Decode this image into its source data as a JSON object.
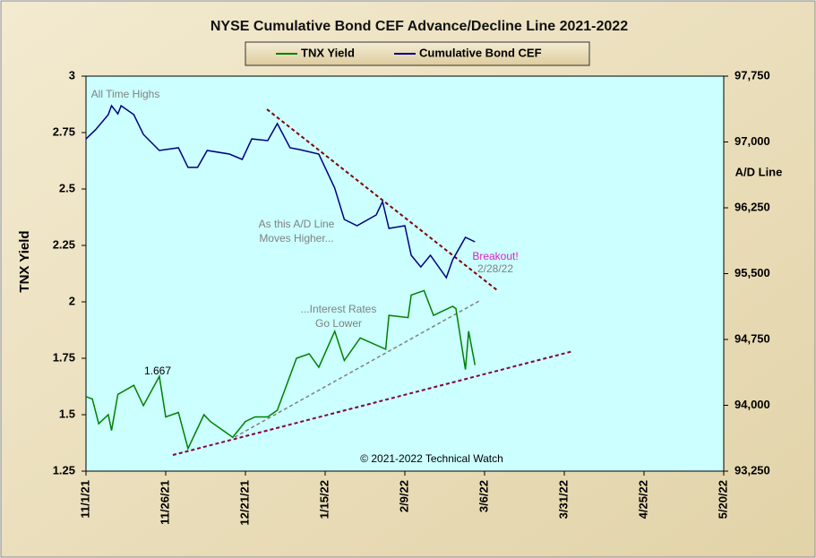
{
  "chart_data": {
    "type": "line",
    "title": "NYSE Cumulative  Bond CEF Advance/Decline  Line 2021-2022",
    "ylabel": "TNX Yield",
    "y2label": "A/D Line",
    "xlim": [
      "2021-11-01",
      "2022-05-20"
    ],
    "xticks": [
      {
        "value": "2021-11-01",
        "label": "11/1/21"
      },
      {
        "value": "2021-11-26",
        "label": "11/26/21"
      },
      {
        "value": "2021-12-21",
        "label": "12/21/21"
      },
      {
        "value": "2022-01-15",
        "label": "1/15/22"
      },
      {
        "value": "2022-02-09",
        "label": "2/9/22"
      },
      {
        "value": "2022-03-06",
        "label": "3/6/22"
      },
      {
        "value": "2022-03-31",
        "label": "3/31/22"
      },
      {
        "value": "2022-04-25",
        "label": "4/25/22"
      },
      {
        "value": "2022-05-20",
        "label": "5/20/22"
      }
    ],
    "ylim": [
      1.25,
      3
    ],
    "yticks": [
      1.25,
      1.5,
      1.75,
      2,
      2.25,
      2.5,
      2.75,
      3
    ],
    "y2lim": [
      93250,
      97750
    ],
    "y2ticks": [
      {
        "value": 93250,
        "label": "93,250"
      },
      {
        "value": 94000,
        "label": "94,000"
      },
      {
        "value": 94750,
        "label": "94,750"
      },
      {
        "value": 95500,
        "label": "95,500"
      },
      {
        "value": 96250,
        "label": "96,250"
      },
      {
        "value": 97000,
        "label": "97,000"
      },
      {
        "value": 97750,
        "label": "97,750"
      }
    ],
    "grid": false,
    "legend": "top",
    "series": [
      {
        "name": "TNX Yield",
        "color": "#008000",
        "axis": "y",
        "x": [
          "2021-11-01",
          "2021-11-03",
          "2021-11-05",
          "2021-11-08",
          "2021-11-09",
          "2021-11-11",
          "2021-11-16",
          "2021-11-19",
          "2021-11-24",
          "2021-11-26",
          "2021-11-30",
          "2021-12-03",
          "2021-12-08",
          "2021-12-10",
          "2021-12-17",
          "2021-12-21",
          "2021-12-24",
          "2021-12-28",
          "2021-12-31",
          "2022-01-06",
          "2022-01-10",
          "2022-01-13",
          "2022-01-18",
          "2022-01-21",
          "2022-01-26",
          "2022-02-03",
          "2022-02-04",
          "2022-02-10",
          "2022-02-11",
          "2022-02-15",
          "2022-02-18",
          "2022-02-24",
          "2022-02-25",
          "2022-02-28",
          "2022-03-01",
          "2022-03-03"
        ],
        "values": [
          1.58,
          1.57,
          1.46,
          1.5,
          1.43,
          1.59,
          1.63,
          1.54,
          1.67,
          1.49,
          1.51,
          1.35,
          1.5,
          1.47,
          1.4,
          1.47,
          1.49,
          1.49,
          1.52,
          1.75,
          1.77,
          1.71,
          1.87,
          1.74,
          1.84,
          1.79,
          1.94,
          1.93,
          2.03,
          2.05,
          1.94,
          1.98,
          1.97,
          1.7,
          1.87,
          1.72
        ]
      },
      {
        "name": "Cumulative Bond CEF",
        "color": "#000080",
        "axis": "y2",
        "x": [
          "2021-11-01",
          "2021-11-04",
          "2021-11-08",
          "2021-11-09",
          "2021-11-11",
          "2021-11-12",
          "2021-11-16",
          "2021-11-19",
          "2021-11-24",
          "2021-11-30",
          "2021-12-03",
          "2021-12-06",
          "2021-12-09",
          "2021-12-16",
          "2021-12-20",
          "2021-12-23",
          "2021-12-28",
          "2021-12-31",
          "2022-01-04",
          "2022-01-07",
          "2022-01-13",
          "2022-01-18",
          "2022-01-21",
          "2022-01-25",
          "2022-01-31",
          "2022-02-02",
          "2022-02-04",
          "2022-02-09",
          "2022-02-11",
          "2022-02-14",
          "2022-02-17",
          "2022-02-22",
          "2022-02-24",
          "2022-02-28",
          "2022-03-03"
        ],
        "values": [
          97035,
          97140,
          97311,
          97413,
          97320,
          97413,
          97311,
          97086,
          96903,
          96934,
          96710,
          96710,
          96903,
          96862,
          96801,
          97035,
          97015,
          97209,
          96934,
          96913,
          96862,
          96474,
          96117,
          96046,
          96168,
          96321,
          96015,
          96046,
          95709,
          95576,
          95709,
          95454,
          95658,
          95913,
          95862
        ]
      }
    ],
    "annotations": [
      {
        "lines": [
          "All Time Highs"
        ],
        "color": "#808080"
      },
      {
        "lines": [
          "As this A/D Line",
          "Moves Higher..."
        ],
        "color": "#808080"
      },
      {
        "lines": [
          "...Interest Rates",
          "Go Lower"
        ],
        "color": "#808080"
      },
      {
        "lines": [
          "1.667"
        ],
        "color": "#000000"
      },
      {
        "lines": [
          "Breakout!"
        ],
        "color": "#e020c0"
      },
      {
        "lines": [
          "2/28/22"
        ],
        "color": "#808080"
      },
      {
        "lines": [
          "© 2021-2022  Technical Watch"
        ],
        "color": "#000000"
      }
    ]
  }
}
